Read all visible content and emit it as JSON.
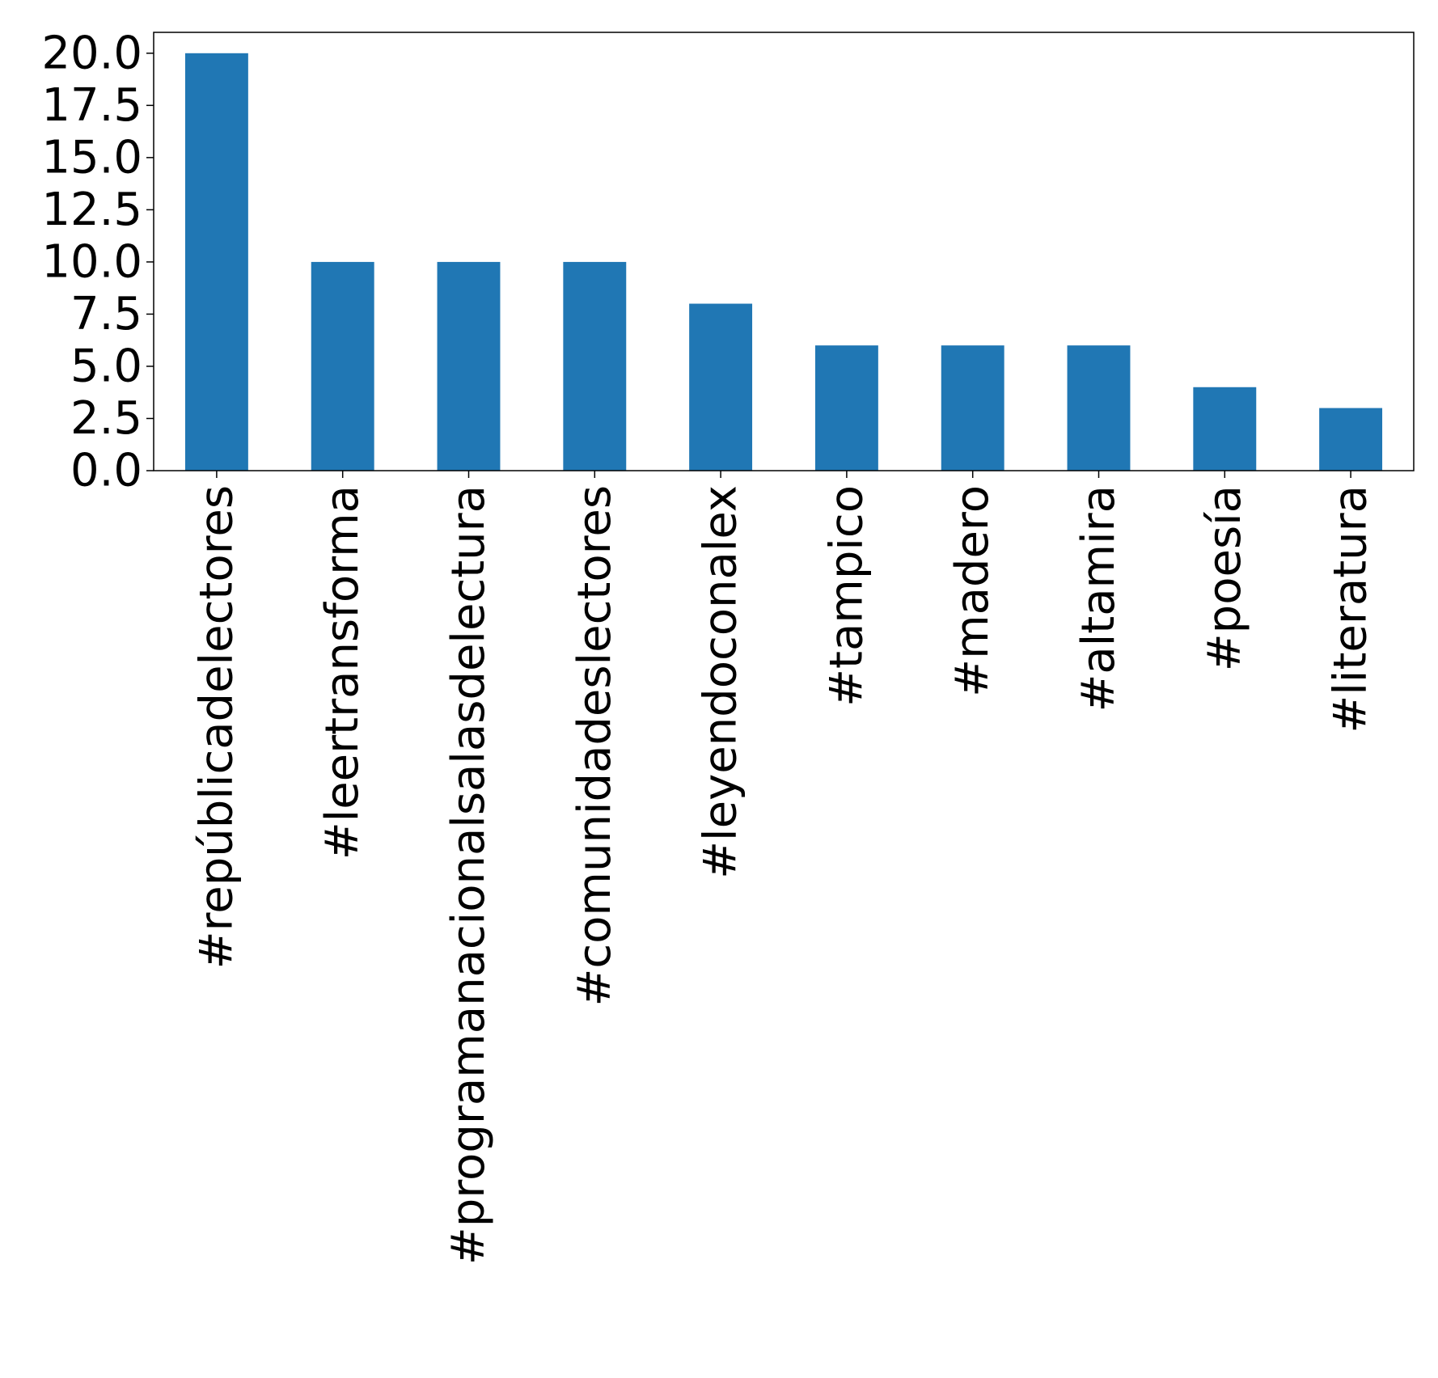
{
  "chart_data": {
    "type": "bar",
    "categories": [
      "#repúblicadelectores",
      "#leertransforma",
      "#programanacionalsalasdelectura",
      "#comunidadeslectores",
      "#leyendoconalex",
      "#tampico",
      "#madero",
      "#altamira",
      "#poesía",
      "#literatura"
    ],
    "values": [
      20,
      10,
      10,
      10,
      8,
      6,
      6,
      6,
      4,
      3
    ],
    "title": "",
    "xlabel": "",
    "ylabel": "",
    "ylim": [
      0,
      21
    ],
    "yticks": [
      "0.0",
      "2.5",
      "5.0",
      "7.5",
      "10.0",
      "12.5",
      "15.0",
      "17.5",
      "20.0"
    ],
    "grid": false,
    "legend": "none",
    "bar_color": "#2077b4",
    "x_tick_rotation": "vertical"
  }
}
